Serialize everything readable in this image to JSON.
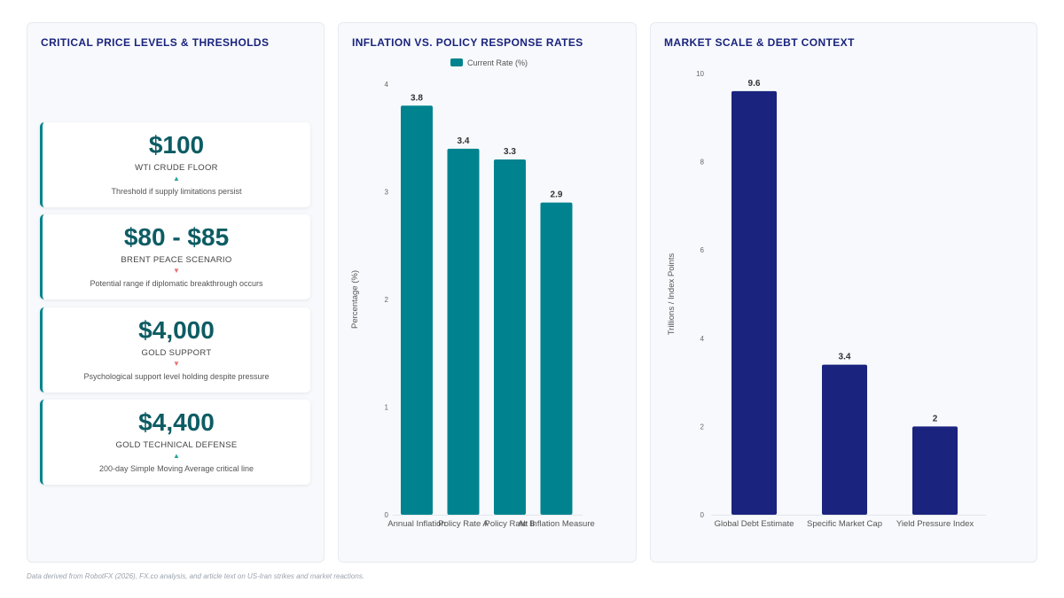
{
  "panels": {
    "thresholds": {
      "title": "CRITICAL PRICE LEVELS & THRESHOLDS",
      "cards": [
        {
          "value": "$100",
          "label": "WTI CRUDE FLOOR",
          "direction": "up",
          "arrow": "▲",
          "description": "Threshold if supply limitations persist"
        },
        {
          "value": "$80 - $85",
          "label": "BRENT PEACE SCENARIO",
          "direction": "down",
          "arrow": "▼",
          "description": "Potential range if diplomatic breakthrough occurs"
        },
        {
          "value": "$4,000",
          "label": "GOLD SUPPORT",
          "direction": "down",
          "arrow": "▼",
          "description": "Psychological support level holding despite pressure"
        },
        {
          "value": "$4,400",
          "label": "GOLD TECHNICAL DEFENSE",
          "direction": "up",
          "arrow": "▲",
          "description": "200-day Simple Moving Average critical line"
        }
      ]
    },
    "inflation": {
      "title": "INFLATION VS. POLICY RESPONSE RATES"
    },
    "market": {
      "title": "MARKET SCALE & DEBT CONTEXT"
    }
  },
  "chart_data": [
    {
      "type": "bar",
      "title": "INFLATION VS. POLICY RESPONSE RATES",
      "categories": [
        "Annual Inflation",
        "Policy Rate A",
        "Policy Rate B",
        "Alt Inflation Measure"
      ],
      "series": [
        {
          "name": "Current Rate (%)",
          "values": [
            3.8,
            3.4,
            3.3,
            2.9
          ]
        }
      ],
      "xlabel": "",
      "ylabel": "Percentage (%)",
      "ylim": [
        0,
        4
      ],
      "yticks": [
        0,
        1,
        2,
        3,
        4
      ],
      "grid": false,
      "legend": "top-center",
      "color": "#00838f"
    },
    {
      "type": "bar",
      "title": "MARKET SCALE & DEBT CONTEXT",
      "categories": [
        "Global Debt Estimate",
        "Specific Market Cap",
        "Yield Pressure Index"
      ],
      "series": [
        {
          "values": [
            9.6,
            3.4,
            2
          ]
        }
      ],
      "xlabel": "",
      "ylabel": "Trillions / Index Points",
      "ylim": [
        0,
        10
      ],
      "yticks": [
        0,
        2,
        4,
        6,
        8,
        10
      ],
      "grid": false,
      "legend": "none",
      "color": "#1a237e"
    }
  ],
  "footnote": "Data derived from RobotFX (2026), FX.co analysis, and article text on US-Iran strikes and market reactions."
}
